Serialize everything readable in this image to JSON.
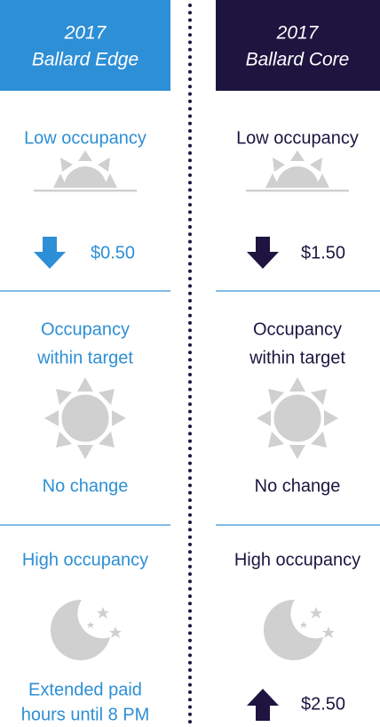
{
  "columns": [
    {
      "header": {
        "year": "2017",
        "name": "Ballard Edge"
      },
      "sections": [
        {
          "label": [
            "Low occupancy"
          ],
          "outcome": [
            "$0.50"
          ]
        },
        {
          "label": [
            "Occupancy",
            "within target"
          ],
          "outcome": [
            "No change"
          ]
        },
        {
          "label": [
            "High occupancy"
          ],
          "outcome": [
            "Extended paid",
            "hours until 8 PM"
          ]
        }
      ]
    },
    {
      "header": {
        "year": "2017",
        "name": "Ballard Core"
      },
      "sections": [
        {
          "label": [
            "Low occupancy"
          ],
          "outcome": [
            "$1.50"
          ]
        },
        {
          "label": [
            "Occupancy",
            "within target"
          ],
          "outcome": [
            "No change"
          ]
        },
        {
          "label": [
            "High occupancy"
          ],
          "outcome": [
            "$2.50"
          ]
        }
      ]
    }
  ]
}
